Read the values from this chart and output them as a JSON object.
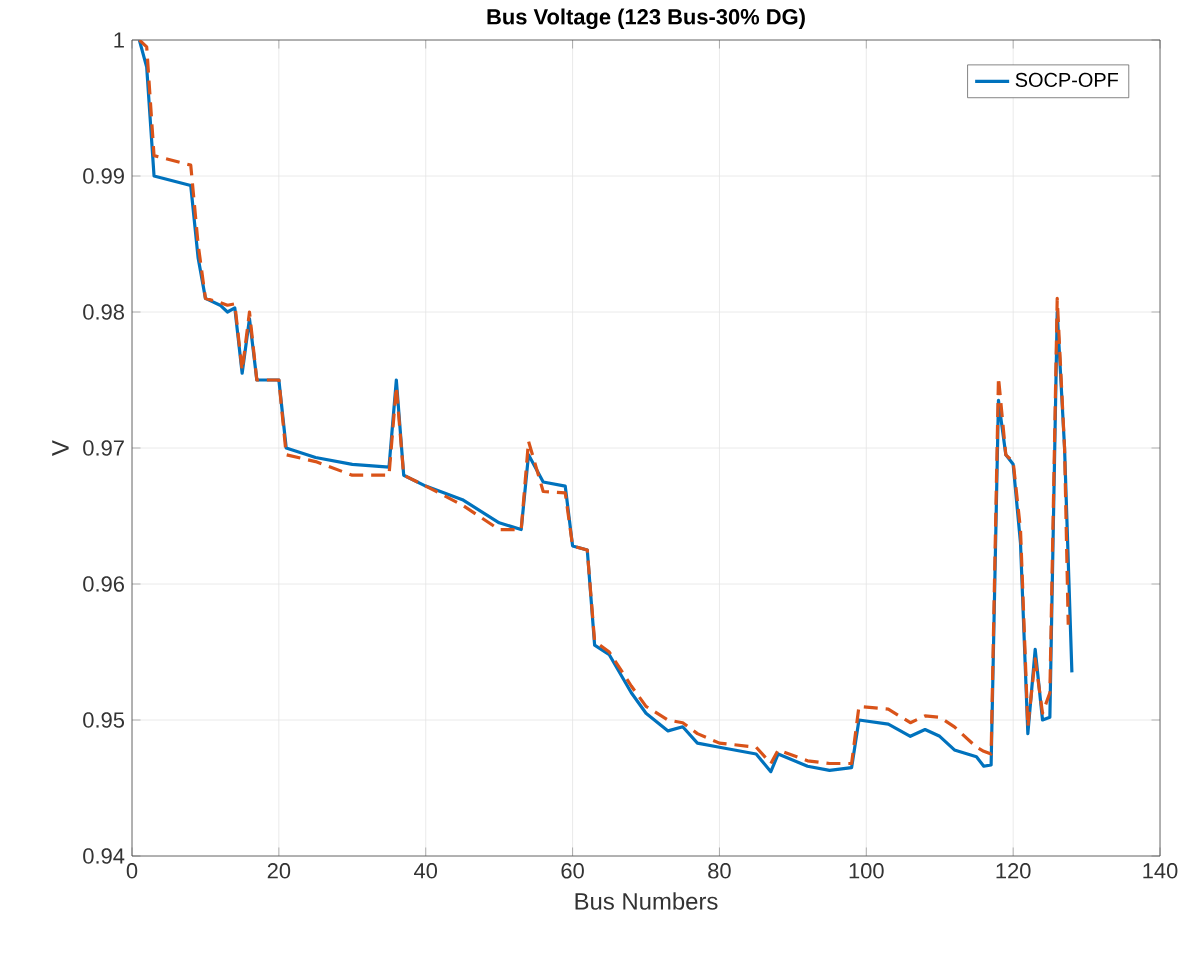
{
  "chart_data": {
    "type": "line",
    "title": "Bus Voltage (123 Bus-30% DG)",
    "xlabel": "Bus Numbers",
    "ylabel": "V",
    "xlim": [
      0,
      140
    ],
    "xticks": [
      0,
      20,
      40,
      60,
      80,
      100,
      120,
      140
    ],
    "ylim": [
      0.94,
      1
    ],
    "yticks": [
      0.94,
      0.95,
      0.96,
      0.97,
      0.98,
      0.99,
      1
    ],
    "grid": true,
    "legend": "top right",
    "series": [
      {
        "name": "SOCP-OPF",
        "color": "#0072bd",
        "line_style": "solid",
        "x": [
          1,
          2,
          3,
          8,
          9,
          10,
          12,
          13,
          14,
          15,
          16,
          17,
          20,
          21,
          25,
          30,
          35,
          36,
          37,
          40,
          45,
          50,
          53,
          54,
          56,
          59,
          60,
          62,
          63,
          65,
          68,
          70,
          73,
          75,
          77,
          80,
          85,
          87,
          88,
          92,
          95,
          98,
          99,
          103,
          106,
          108,
          110,
          112,
          115,
          116,
          117,
          118,
          119,
          120,
          121,
          122,
          123,
          124,
          125,
          126,
          127,
          128
        ],
        "values": [
          1.0,
          0.998,
          0.99,
          0.9893,
          0.984,
          0.981,
          0.9805,
          0.98,
          0.9803,
          0.9755,
          0.9795,
          0.975,
          0.975,
          0.97,
          0.9693,
          0.9688,
          0.9686,
          0.975,
          0.968,
          0.9672,
          0.9662,
          0.9645,
          0.964,
          0.9695,
          0.9675,
          0.9672,
          0.9628,
          0.9625,
          0.9555,
          0.9548,
          0.952,
          0.9505,
          0.9492,
          0.9495,
          0.9483,
          0.948,
          0.9475,
          0.9462,
          0.9475,
          0.9466,
          0.9463,
          0.9465,
          0.95,
          0.9497,
          0.9488,
          0.9493,
          0.9488,
          0.9478,
          0.9473,
          0.9466,
          0.9467,
          0.9735,
          0.9695,
          0.9688,
          0.963,
          0.949,
          0.9552,
          0.95,
          0.9502,
          0.98,
          0.97,
          0.9535
        ]
      },
      {
        "color": "#d95319",
        "line_style": "dashed",
        "x": [
          1,
          2,
          3,
          8,
          9,
          10,
          12,
          13,
          14,
          15,
          16,
          17,
          20,
          21,
          25,
          30,
          35,
          36,
          37,
          40,
          45,
          50,
          53,
          54,
          56,
          59,
          60,
          62,
          63,
          65,
          68,
          70,
          73,
          75,
          77,
          80,
          85,
          87,
          88,
          92,
          95,
          98,
          99,
          103,
          106,
          108,
          110,
          112,
          115,
          116,
          117,
          118,
          119,
          120,
          121,
          122,
          123,
          124,
          125,
          126,
          127,
          127.5
        ],
        "values": [
          1.0,
          0.9995,
          0.9915,
          0.9908,
          0.985,
          0.981,
          0.9807,
          0.9805,
          0.9806,
          0.9757,
          0.98,
          0.975,
          0.975,
          0.9695,
          0.969,
          0.968,
          0.968,
          0.9745,
          0.968,
          0.9672,
          0.9658,
          0.964,
          0.964,
          0.9705,
          0.9668,
          0.9667,
          0.9628,
          0.9625,
          0.9558,
          0.955,
          0.9525,
          0.951,
          0.95,
          0.9498,
          0.949,
          0.9483,
          0.948,
          0.9468,
          0.9478,
          0.947,
          0.9468,
          0.9468,
          0.951,
          0.9508,
          0.9498,
          0.9503,
          0.9502,
          0.9495,
          0.948,
          0.9477,
          0.9475,
          0.9752,
          0.9695,
          0.969,
          0.964,
          0.9495,
          0.9545,
          0.9505,
          0.952,
          0.981,
          0.97,
          0.957
        ]
      }
    ]
  }
}
